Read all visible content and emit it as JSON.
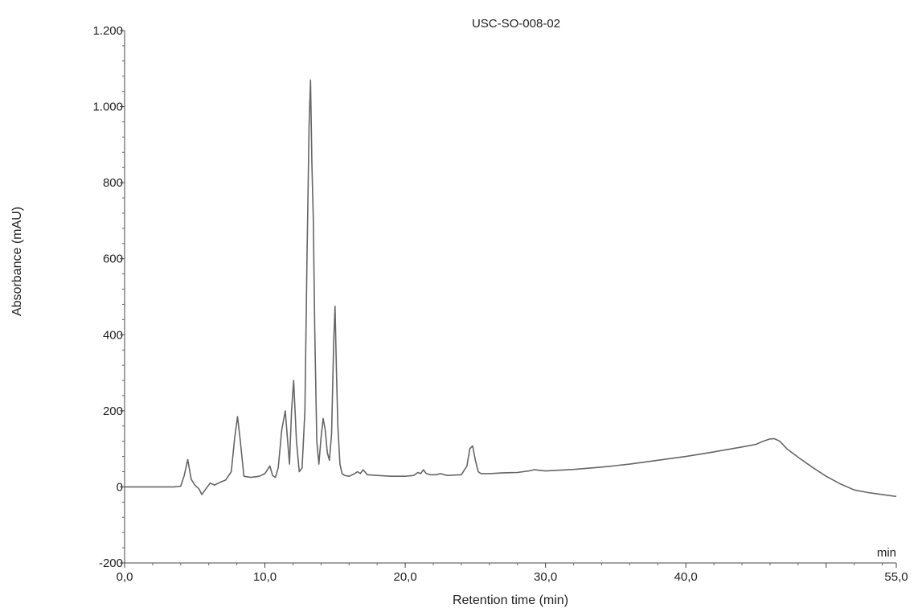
{
  "chart_data": {
    "type": "line",
    "title": "USC-SO-008-02",
    "xlabel": "Retention time (min)",
    "ylabel": "Absorbance (mAU)",
    "x_unit": "min",
    "xlim": [
      0,
      55
    ],
    "ylim": [
      -200,
      1200
    ],
    "x_ticks": [
      {
        "value": 0,
        "label": "0,0"
      },
      {
        "value": 10,
        "label": "10,0"
      },
      {
        "value": 20,
        "label": "20,0"
      },
      {
        "value": 30,
        "label": "30,0"
      },
      {
        "value": 40,
        "label": "40,0"
      },
      {
        "value": 55,
        "label": "55,0"
      }
    ],
    "y_ticks": [
      {
        "value": -200,
        "label": "-200"
      },
      {
        "value": 0,
        "label": "0"
      },
      {
        "value": 200,
        "label": "200"
      },
      {
        "value": 400,
        "label": "400"
      },
      {
        "value": 600,
        "label": "600"
      },
      {
        "value": 800,
        "label": "800"
      },
      {
        "value": 1000,
        "label": "1.000"
      },
      {
        "value": 1200,
        "label": "1.200"
      }
    ],
    "grid": false,
    "line_color": "#666666",
    "series": [
      {
        "x": [
          0,
          2,
          3.5,
          4.0,
          4.25,
          4.5,
          4.75,
          5.0,
          5.3,
          5.5,
          5.8,
          6.1,
          6.4,
          6.8,
          7.2,
          7.6,
          7.85,
          8.05,
          8.25,
          8.5,
          9.0,
          9.6,
          10.0,
          10.35,
          10.55,
          10.75,
          10.95,
          11.2,
          11.45,
          11.6,
          11.75,
          11.9,
          12.05,
          12.25,
          12.45,
          12.65,
          12.85,
          13.0,
          13.15,
          13.25,
          13.35,
          13.45,
          13.55,
          13.7,
          13.85,
          14.0,
          14.15,
          14.3,
          14.45,
          14.6,
          14.75,
          14.9,
          15.0,
          15.1,
          15.2,
          15.35,
          15.5,
          15.7,
          16.0,
          16.4,
          16.6,
          16.8,
          17.0,
          17.3,
          18.0,
          19.0,
          20.0,
          20.6,
          20.9,
          21.1,
          21.3,
          21.5,
          21.8,
          22.2,
          22.5,
          23.0,
          24.0,
          24.4,
          24.6,
          24.8,
          25.0,
          25.2,
          25.4,
          26.0,
          27.0,
          28.0,
          28.8,
          29.2,
          30.0,
          32.0,
          34.0,
          36.0,
          38.0,
          40.0,
          42.0,
          44.0,
          45.0,
          45.5,
          46.0,
          46.3,
          46.7,
          47.2,
          48.0,
          49.0,
          50.0,
          51.0,
          52.0,
          53.0,
          54.0,
          55.0
        ],
        "y": [
          0,
          0,
          0,
          2,
          30,
          72,
          20,
          5,
          -5,
          -20,
          -5,
          10,
          5,
          12,
          18,
          40,
          130,
          185,
          120,
          28,
          25,
          28,
          35,
          55,
          30,
          25,
          50,
          150,
          200,
          130,
          60,
          200,
          280,
          120,
          40,
          50,
          200,
          600,
          950,
          1070,
          850,
          700,
          420,
          120,
          60,
          130,
          180,
          150,
          90,
          70,
          140,
          380,
          475,
          300,
          160,
          60,
          35,
          30,
          28,
          35,
          40,
          35,
          45,
          32,
          30,
          28,
          28,
          30,
          38,
          35,
          45,
          35,
          32,
          32,
          35,
          30,
          32,
          55,
          100,
          108,
          70,
          40,
          35,
          35,
          37,
          38,
          42,
          45,
          42,
          46,
          52,
          60,
          70,
          80,
          92,
          105,
          112,
          120,
          126,
          127,
          120,
          100,
          78,
          52,
          28,
          8,
          -8,
          -15,
          -20,
          -25
        ]
      }
    ]
  }
}
